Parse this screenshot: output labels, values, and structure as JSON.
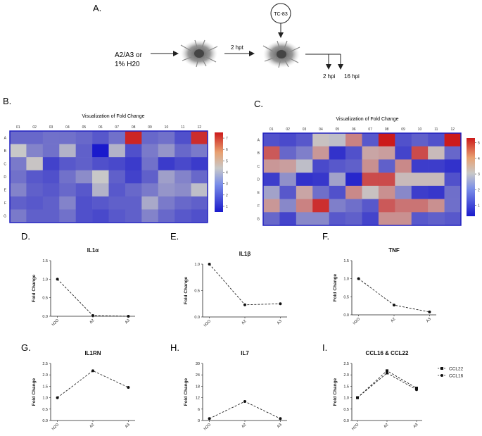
{
  "panel_labels": {
    "a": "A.",
    "b": "B.",
    "c": "C.",
    "d": "D.",
    "e": "E.",
    "f": "F.",
    "g": "G.",
    "h": "H.",
    "i": "I."
  },
  "schematic": {
    "treatment_line1": "A2/A3 or",
    "treatment_line2": "1% H20",
    "hpt_label": "2 hpt",
    "virus_label": "TC-83",
    "timepoint_1": "2 hpi",
    "timepoint_2": "16 hpi"
  },
  "colors": {
    "low": "#1a1acc",
    "mid": "#c8c8c8",
    "high": "#cc1a1a",
    "border": "#2020c0",
    "line": "#222222"
  },
  "chart_data": [
    {
      "type": "heatmap",
      "id": "heatmap-b",
      "title": "Visualization of Fold Change",
      "columns": [
        "01",
        "02",
        "03",
        "04",
        "05",
        "06",
        "07",
        "08",
        "09",
        "10",
        "11",
        "12"
      ],
      "rows": [
        "A",
        "B",
        "C",
        "D",
        "E",
        "F",
        "G"
      ],
      "colorbar_ticks": [
        "1",
        "2",
        "3",
        "4",
        "5",
        "6",
        "7"
      ],
      "range": [
        0.5,
        7.5
      ],
      "values": [
        [
          1.8,
          1.8,
          1.9,
          1.9,
          1.8,
          1.6,
          1.9,
          7.2,
          1.8,
          1.9,
          1.5,
          7.0
        ],
        [
          2.8,
          2.1,
          1.9,
          2.6,
          1.7,
          0.5,
          2.6,
          1.5,
          2.0,
          2.3,
          1.8,
          2.0
        ],
        [
          2.0,
          2.9,
          1.3,
          1.6,
          1.7,
          1.5,
          1.4,
          1.2,
          1.9,
          1.2,
          1.4,
          1.2
        ],
        [
          1.9,
          1.6,
          1.5,
          1.9,
          2.2,
          2.8,
          1.7,
          1.3,
          1.7,
          2.4,
          2.1,
          1.8
        ],
        [
          2.1,
          1.7,
          1.6,
          1.8,
          1.6,
          2.6,
          1.6,
          1.8,
          2.0,
          2.3,
          2.2,
          2.7
        ],
        [
          1.7,
          1.6,
          1.7,
          2.1,
          1.5,
          1.6,
          1.7,
          1.7,
          2.5,
          2.0,
          1.8,
          1.7
        ],
        [
          2.0,
          1.7,
          1.7,
          1.9,
          1.5,
          1.4,
          1.6,
          1.7,
          2.1,
          1.8,
          1.6,
          1.5
        ]
      ]
    },
    {
      "type": "heatmap",
      "id": "heatmap-c",
      "title": "Visualization of Fold Change",
      "columns": [
        "01",
        "02",
        "03",
        "04",
        "05",
        "06",
        "07",
        "08",
        "09",
        "10",
        "11",
        "12"
      ],
      "rows": [
        "A",
        "B",
        "C",
        "D",
        "E",
        "F",
        "G"
      ],
      "colorbar_ticks": [
        "1",
        "2",
        "3",
        "4",
        "5"
      ],
      "range": [
        0.3,
        5.3
      ],
      "values": [
        [
          1.4,
          1.3,
          1.5,
          2.9,
          2.7,
          3.8,
          1.5,
          5.3,
          1.4,
          1.6,
          1.4,
          5.3
        ],
        [
          4.4,
          1.7,
          2.0,
          3.5,
          0.9,
          1.4,
          3.3,
          3.4,
          1.2,
          4.6,
          3.0,
          1.7
        ],
        [
          3.5,
          3.4,
          2.7,
          1.3,
          1.5,
          1.6,
          3.6,
          1.6,
          3.7,
          1.1,
          1.1,
          0.9
        ],
        [
          1.1,
          2.2,
          0.9,
          1.0,
          2.4,
          0.7,
          4.6,
          4.6,
          3.0,
          3.0,
          3.0,
          1.4
        ],
        [
          2.4,
          1.5,
          3.3,
          1.8,
          1.4,
          3.7,
          2.9,
          3.6,
          2.1,
          1.1,
          1.0,
          1.8
        ],
        [
          3.5,
          2.1,
          3.8,
          5.0,
          2.0,
          1.8,
          1.5,
          4.4,
          4.0,
          4.0,
          3.6,
          1.8
        ],
        [
          1.7,
          1.2,
          2.1,
          2.1,
          1.5,
          1.6,
          1.2,
          3.6,
          3.6,
          1.5,
          1.6,
          1.5
        ]
      ]
    },
    {
      "type": "line",
      "id": "plot-il1a",
      "title": "IL1α",
      "ylabel": "Fold Change",
      "categories": [
        "H2O",
        "A2",
        "A3"
      ],
      "yticks": [
        "0.0",
        "0.5",
        "1.0",
        "1.5"
      ],
      "ylim": [
        0,
        1.5
      ],
      "series": [
        {
          "name": "IL1α",
          "marker": "circle",
          "values": [
            1.0,
            0.02,
            0.0
          ]
        }
      ]
    },
    {
      "type": "line",
      "id": "plot-il1b",
      "title": "IL1β",
      "ylabel": "Fold Change",
      "categories": [
        "H2O",
        "A2",
        "A3"
      ],
      "yticks": [
        "0.0",
        "0.5",
        "1.0"
      ],
      "ylim": [
        0,
        1.0
      ],
      "series": [
        {
          "name": "IL1β",
          "marker": "circle",
          "values": [
            1.0,
            0.23,
            0.25
          ]
        }
      ]
    },
    {
      "type": "line",
      "id": "plot-tnf",
      "title": "TNF",
      "ylabel": "Fold Change",
      "categories": [
        "H2O",
        "A2",
        "A3"
      ],
      "yticks": [
        "0.0",
        "0.5",
        "1.0",
        "1.5"
      ],
      "ylim": [
        0,
        1.5
      ],
      "series": [
        {
          "name": "TNF",
          "marker": "circle",
          "values": [
            1.0,
            0.27,
            0.08
          ]
        }
      ]
    },
    {
      "type": "line",
      "id": "plot-il1rn",
      "title": "IL1RN",
      "ylabel": "Fold Change",
      "categories": [
        "H2O",
        "A2",
        "A3"
      ],
      "yticks": [
        "0.0",
        "0.5",
        "1.0",
        "1.5",
        "2.0",
        "2.5"
      ],
      "ylim": [
        0,
        2.5
      ],
      "series": [
        {
          "name": "IL1RN",
          "marker": "circle",
          "values": [
            1.0,
            2.18,
            1.45
          ]
        }
      ]
    },
    {
      "type": "line",
      "id": "plot-il7",
      "title": "IL7",
      "ylabel": "Fold Change",
      "categories": [
        "H2O",
        "A2",
        "A3"
      ],
      "yticks": [
        "0",
        "6",
        "12",
        "18",
        "24",
        "30"
      ],
      "ylim": [
        0,
        30
      ],
      "series": [
        {
          "name": "IL7",
          "marker": "circle",
          "values": [
            1.0,
            10.0,
            1.0
          ]
        }
      ]
    },
    {
      "type": "line",
      "id": "plot-ccl",
      "title": "CCL16 & CCL22",
      "ylabel": "Fold Change",
      "categories": [
        "H2O",
        "A2",
        "A3"
      ],
      "yticks": [
        "0.0",
        "0.5",
        "1.0",
        "1.5",
        "2.0",
        "2.5"
      ],
      "ylim": [
        0,
        2.5
      ],
      "legend": "right",
      "series": [
        {
          "name": "CCL22",
          "marker": "square",
          "values": [
            1.0,
            2.18,
            1.42
          ]
        },
        {
          "name": "CCL16",
          "marker": "circle",
          "values": [
            1.0,
            2.08,
            1.35
          ]
        }
      ]
    }
  ]
}
